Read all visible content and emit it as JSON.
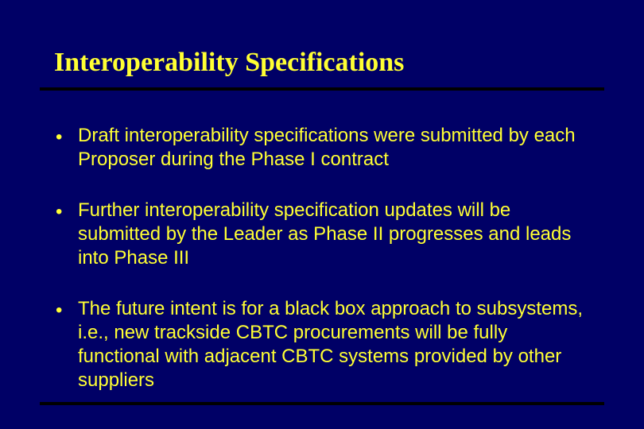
{
  "slide": {
    "background_color": "#000066",
    "title": {
      "text": "Interoperability Specifications",
      "color": "#ffff33",
      "font_family": "Times New Roman",
      "font_size": 34,
      "font_weight": "bold"
    },
    "title_underline": {
      "color": "#000000",
      "thickness": 4
    },
    "bullets": [
      {
        "text": "Draft interoperability specifications were submitted by each Proposer during the Phase I contract"
      },
      {
        "text": "Further interoperability specification updates will be submitted by the Leader as Phase II progresses and leads into Phase III"
      },
      {
        "text": "The future intent is for a black box approach to subsystems, i.e., new trackside CBTC procurements will be fully functional with adjacent CBTC systems provided by other suppliers"
      }
    ],
    "bullet_style": {
      "marker": "•",
      "text_color": "#ffff33",
      "font_size": 24,
      "font_family": "Arial"
    },
    "bottom_line": {
      "color": "#000000",
      "thickness": 4
    }
  }
}
